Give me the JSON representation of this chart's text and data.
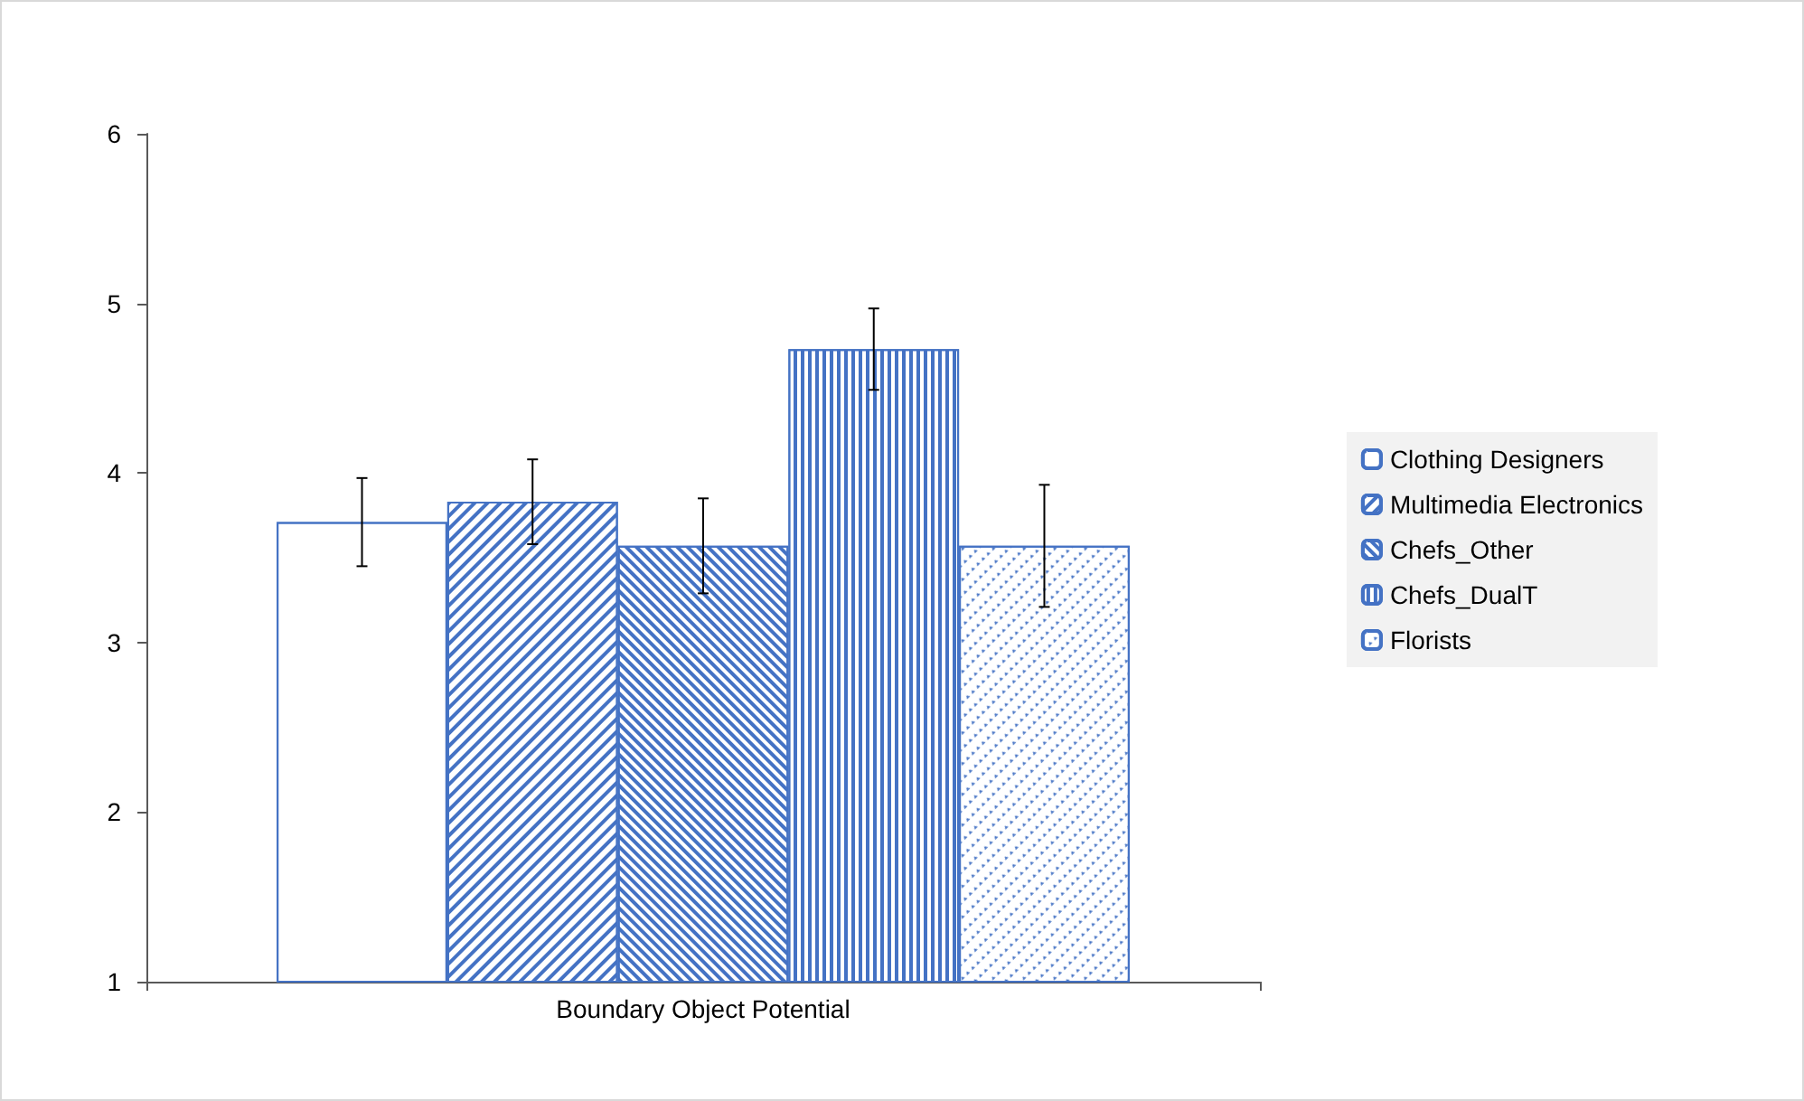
{
  "chart_data": {
    "type": "bar",
    "categories": [
      "Boundary Object Potential"
    ],
    "series": [
      {
        "name": "Clothing Designers",
        "color": "#4472c4",
        "values": [
          3.71
        ],
        "errors": [
          0.26
        ]
      },
      {
        "name": "Multimedia Electronics",
        "color": "#4472c4",
        "values": [
          3.83
        ],
        "errors": [
          0.25
        ]
      },
      {
        "name": "Chefs_Other",
        "color": "#4472c4",
        "values": [
          3.57
        ],
        "errors": [
          0.28
        ]
      },
      {
        "name": "Chefs_DualT",
        "color": "#4472c4",
        "values": [
          4.73
        ],
        "errors": [
          0.24
        ]
      },
      {
        "name": "Florists",
        "color": "#4472c4",
        "values": [
          3.57
        ],
        "errors": [
          0.36
        ]
      }
    ],
    "ylim": [
      1,
      6
    ],
    "yticks": [
      1,
      2,
      3,
      4,
      5,
      6
    ],
    "grid": false,
    "legend": "right"
  }
}
